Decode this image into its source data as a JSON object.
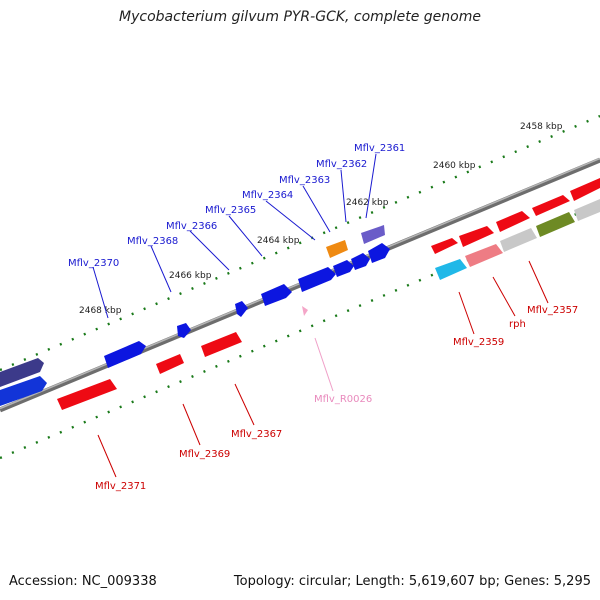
{
  "title": "Mycobacterium gilvum PYR-GCK, complete genome",
  "footer": {
    "accession": "Accession: NC_009338",
    "summary": "Topology: circular; Length: 5,619,607 bp; Genes: 5,295"
  },
  "kbp_labels": [
    "2458 kbp",
    "2460 kbp",
    "2462 kbp",
    "2464 kbp",
    "2466 kbp",
    "2468 kbp"
  ],
  "gene_labels_top": [
    "Mflv_2361",
    "Mflv_2362",
    "Mflv_2363",
    "Mflv_2364",
    "Mflv_2365",
    "Mflv_2366",
    "Mflv_2368",
    "Mflv_2370"
  ],
  "gene_labels_bottom": [
    "Mflv_2357",
    "rph",
    "Mflv_2359",
    "Mflv_R0026",
    "Mflv_2367",
    "Mflv_2369",
    "Mflv_2371"
  ],
  "colors": {
    "forward_gene": "#0a14e6",
    "reverse_gene": "#ee0a14",
    "rna": "#f4a6c8",
    "backbone": "#8a8a8a",
    "tick": "#1a7a1a"
  }
}
